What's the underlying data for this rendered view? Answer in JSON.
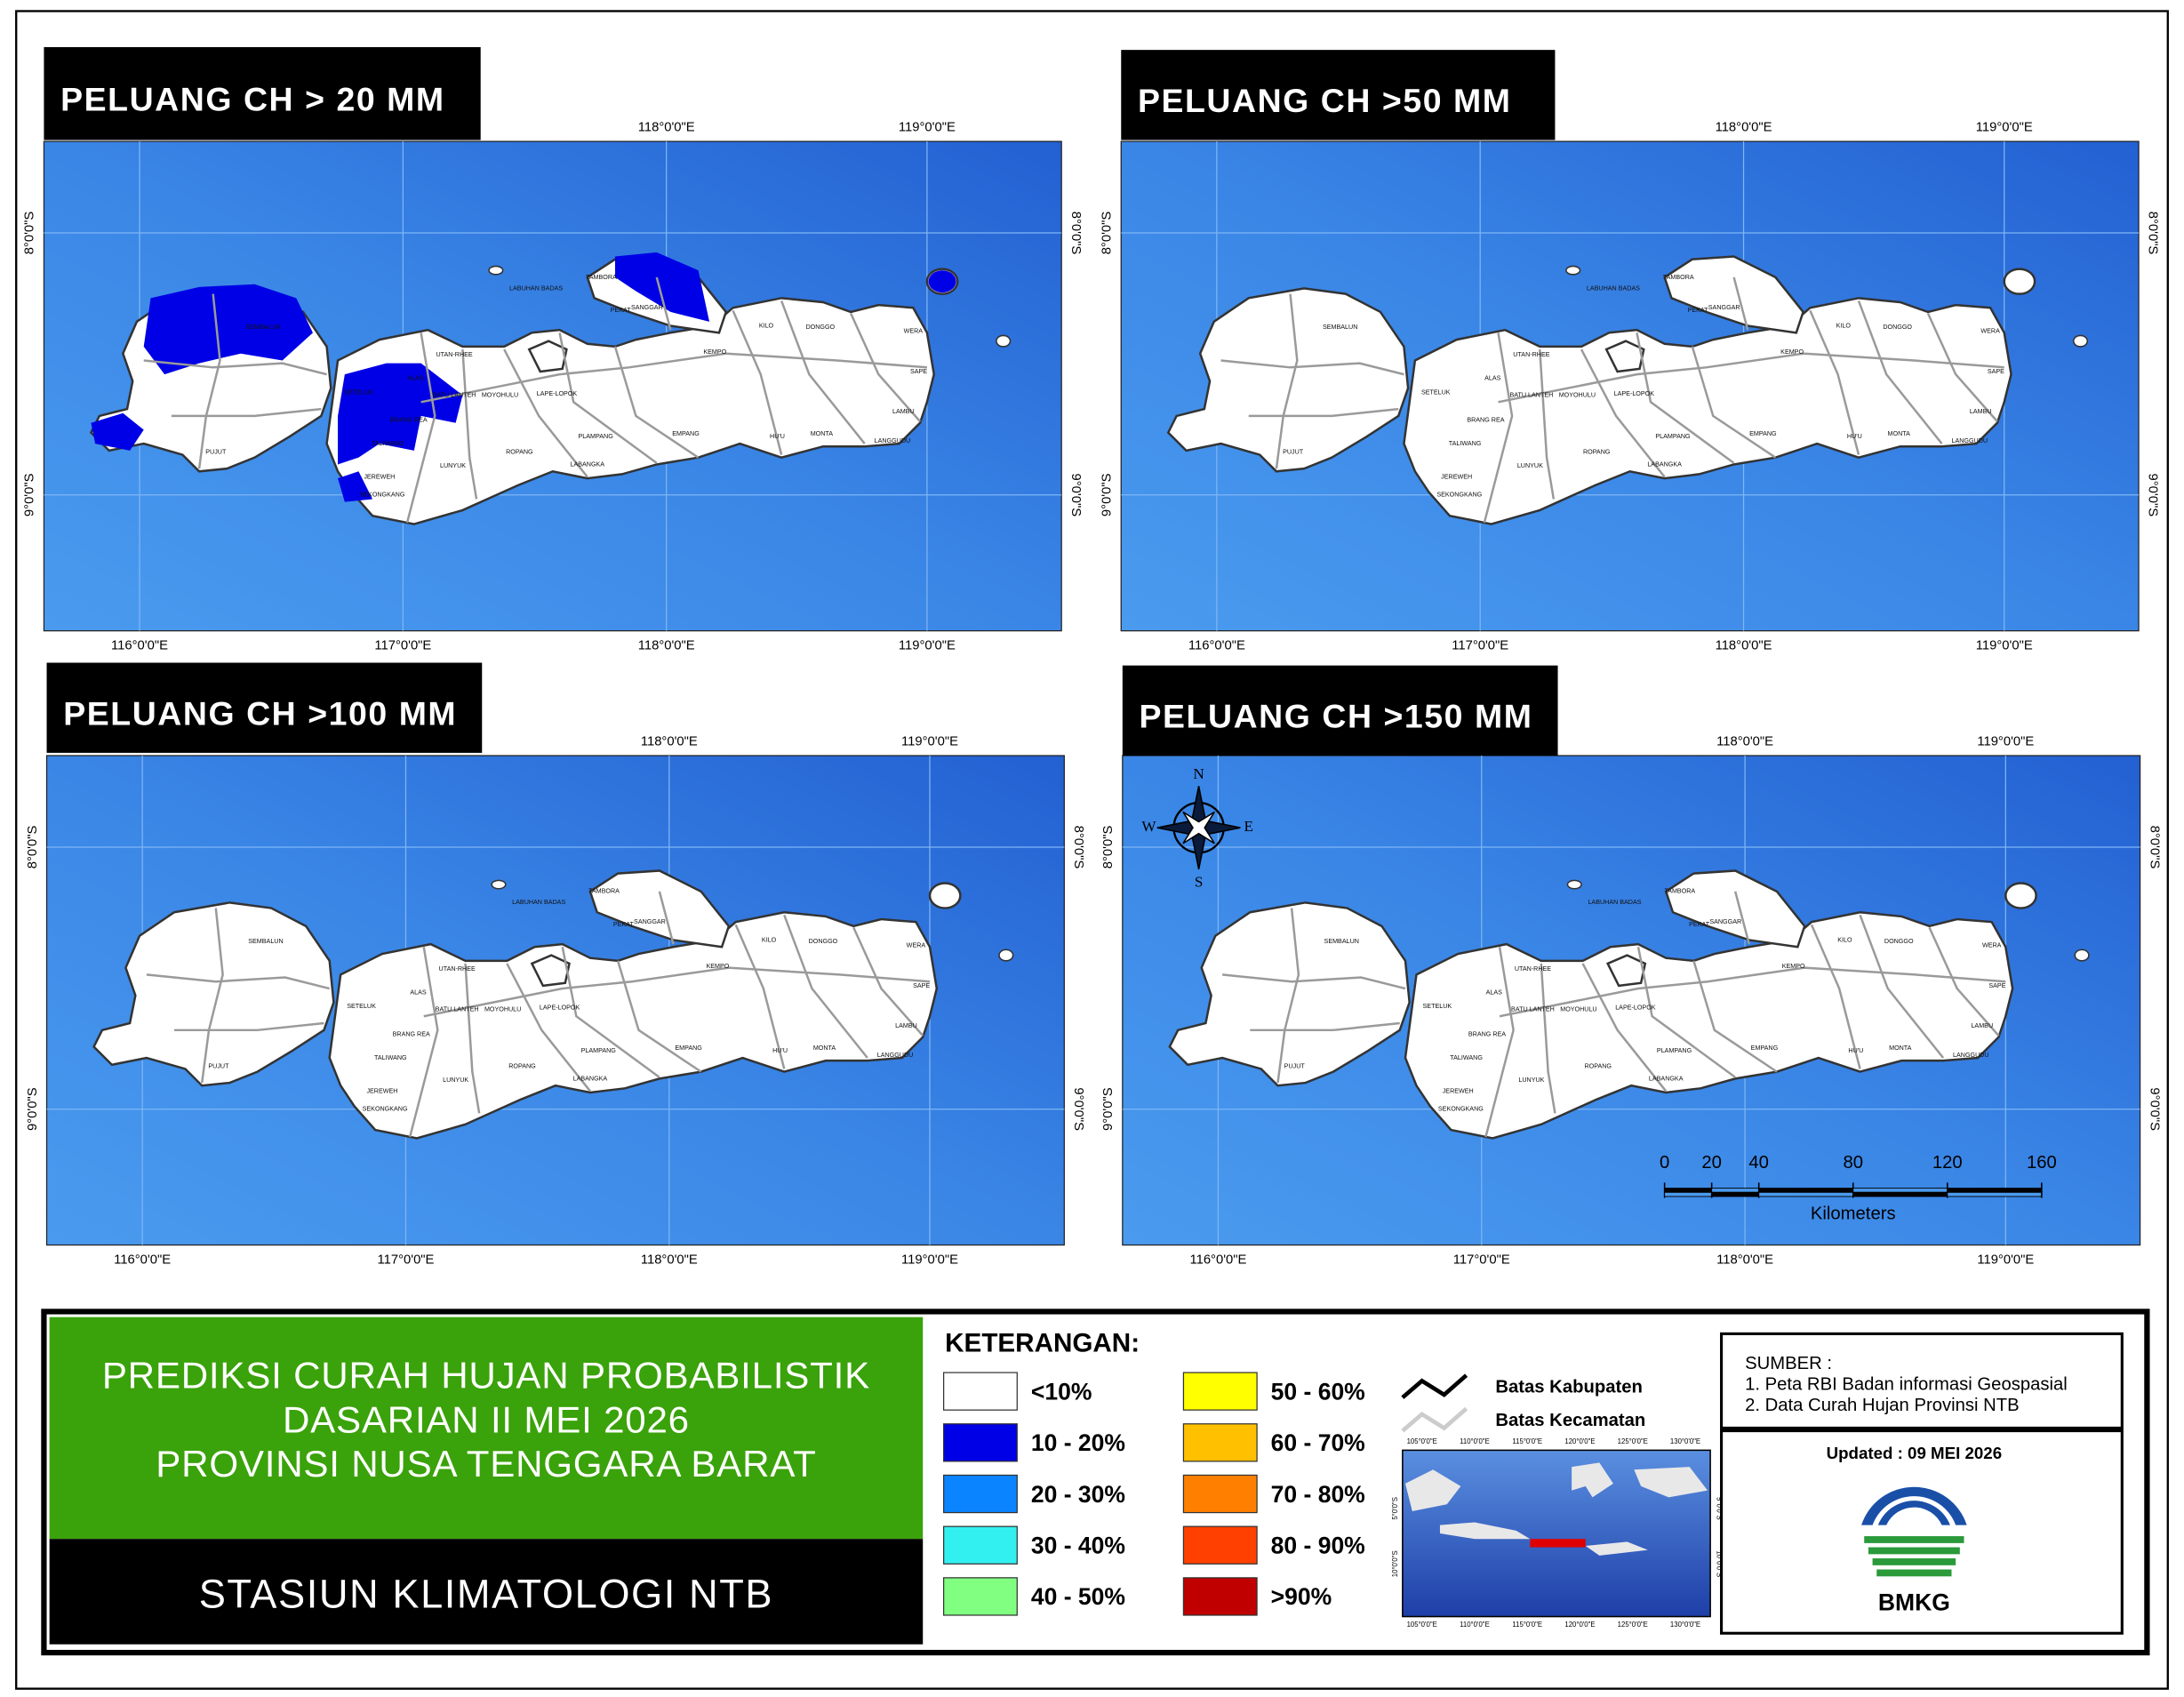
{
  "panels": [
    {
      "title": "PELUANG CH > 20 MM"
    },
    {
      "title": "PELUANG CH >50 MM"
    },
    {
      "title": "PELUANG CH >100 MM"
    },
    {
      "title": "PELUANG CH >150 MM"
    }
  ],
  "lon_labels": [
    "116°0'0\"E",
    "117°0'0\"E",
    "118°0'0\"E",
    "119°0'0\"E"
  ],
  "lat_labels": [
    "8°0'0\"S",
    "9°0'0\"S"
  ],
  "place_names": [
    "SEMBALUN",
    "PUJUT",
    "JEREWEH",
    "LUNYUK",
    "ROPANG",
    "PLAMPANG",
    "EMPANG",
    "LABANGKA",
    "MOYOHULU",
    "LAPE-LOPOK",
    "UTAN-RHEE",
    "LABUHAN BADAS",
    "PEKAT",
    "TAMBORA",
    "SANGGAR",
    "KEMPO",
    "KILO",
    "DONGGO",
    "WERA",
    "SAPE",
    "LAMBU",
    "MONTA",
    "HU'U",
    "LANGGUDU",
    "ALAS",
    "SETELUK",
    "BATU LANTEH",
    "TALIWANG",
    "SEKONGKANG",
    "BRANG REA"
  ],
  "compass": {
    "n": "N",
    "e": "E",
    "s": "S",
    "w": "W"
  },
  "scale_bar": {
    "ticks": [
      0,
      20,
      40,
      80,
      120,
      160
    ],
    "unit": "Kilometers"
  },
  "title_block": {
    "lines": [
      "PREDIKSI CURAH HUJAN PROBABILISTIK",
      "DASARIAN  II MEI 2026",
      "PROVINSI NUSA TENGGARA BARAT"
    ],
    "station": "STASIUN KLIMATOLOGI NTB"
  },
  "legend": {
    "title": "KETERANGAN:",
    "items": [
      {
        "label": "<10%",
        "color": "#ffffff"
      },
      {
        "label": "10 - 20%",
        "color": "#0000e6"
      },
      {
        "label": "20 - 30%",
        "color": "#0a84ff"
      },
      {
        "label": "30 - 40%",
        "color": "#33f0f0"
      },
      {
        "label": "40 - 50%",
        "color": "#80ff80"
      },
      {
        "label": "50 - 60%",
        "color": "#ffff00"
      },
      {
        "label": "60 - 70%",
        "color": "#ffc000"
      },
      {
        "label": "70 - 80%",
        "color": "#ff8000"
      },
      {
        "label": "80 - 90%",
        "color": "#ff4000"
      },
      {
        "label": ">90%",
        "color": "#c00000"
      }
    ],
    "lines": [
      {
        "label": "Batas Kabupaten"
      },
      {
        "label": "Batas Kecamatan"
      }
    ]
  },
  "inset": {
    "lon_labels": [
      "105°0'0\"E",
      "110°0'0\"E",
      "115°0'0\"E",
      "120°0'0\"E",
      "125°0'0\"E",
      "130°0'0\"E"
    ],
    "lat_labels": [
      "5°0'0\"S",
      "10°0'0\"S"
    ]
  },
  "source": {
    "title": "SUMBER :",
    "items": [
      "1. Peta RBI Badan informasi Geospasial",
      "2. Data Curah Hujan Provinsi NTB"
    ]
  },
  "updated": "Updated : 09 MEI 2026",
  "logo": "BMKG"
}
